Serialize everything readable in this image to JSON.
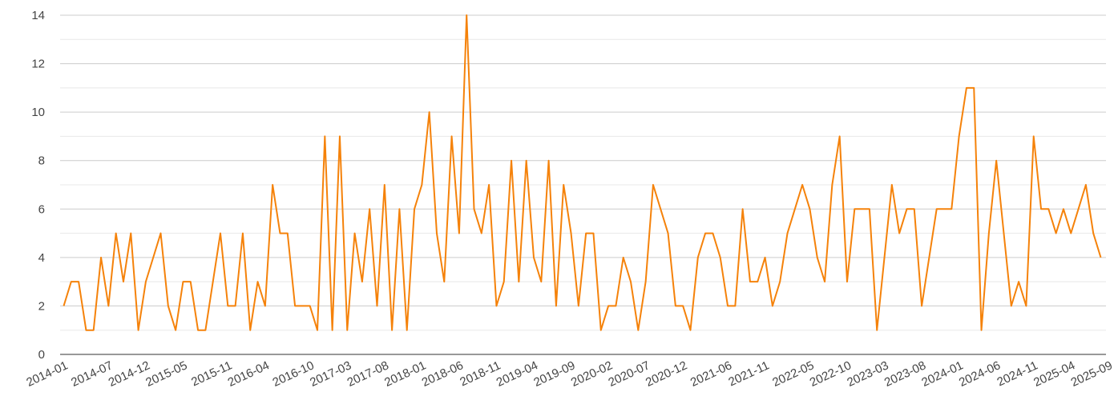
{
  "chart_data": {
    "type": "line",
    "title": "",
    "xlabel": "",
    "ylabel": "",
    "ylim": [
      0,
      14
    ],
    "yticks": [
      0,
      2,
      4,
      6,
      8,
      10,
      12,
      14
    ],
    "grid": true,
    "legend": "none",
    "line_color": "#f5820a",
    "x_start": "2014-01",
    "x_tick_labels": [
      "2014-01",
      "2014-07",
      "2014-12",
      "2015-05",
      "2015-11",
      "2016-04",
      "2016-10",
      "2017-03",
      "2017-08",
      "2018-01",
      "2018-06",
      "2018-11",
      "2019-04",
      "2019-09",
      "2020-02",
      "2020-07",
      "2020-12",
      "2021-06",
      "2021-11",
      "2022-05",
      "2022-10",
      "2023-03",
      "2023-08",
      "2024-01",
      "2024-06",
      "2024-11",
      "2025-04",
      "2025-09"
    ],
    "series": [
      {
        "values": [
          2,
          3,
          3,
          1,
          1,
          4,
          2,
          5,
          3,
          5,
          1,
          3,
          4,
          5,
          2,
          1,
          3,
          3,
          1,
          1,
          3,
          5,
          2,
          2,
          5,
          1,
          3,
          2,
          7,
          5,
          5,
          2,
          2,
          2,
          1,
          9,
          1,
          9,
          1,
          5,
          3,
          6,
          2,
          7,
          1,
          6,
          1,
          6,
          7,
          10,
          5,
          3,
          9,
          5,
          14,
          6,
          5,
          7,
          2,
          3,
          8,
          3,
          8,
          4,
          3,
          8,
          2,
          7,
          5,
          2,
          5,
          5,
          1,
          2,
          2,
          4,
          3,
          1,
          3,
          7,
          6,
          5,
          2,
          2,
          1,
          4,
          5,
          5,
          4,
          2,
          2,
          6,
          3,
          3,
          4,
          2,
          3,
          5,
          6,
          7,
          6,
          4,
          3,
          7,
          9,
          3,
          6,
          6,
          6,
          1,
          4,
          7,
          5,
          6,
          6,
          2,
          4,
          6,
          6,
          6,
          9,
          11,
          11,
          1,
          5,
          8,
          5,
          2,
          3,
          2,
          9,
          6,
          6,
          5,
          6,
          5,
          6,
          7,
          5,
          4
        ]
      }
    ]
  }
}
